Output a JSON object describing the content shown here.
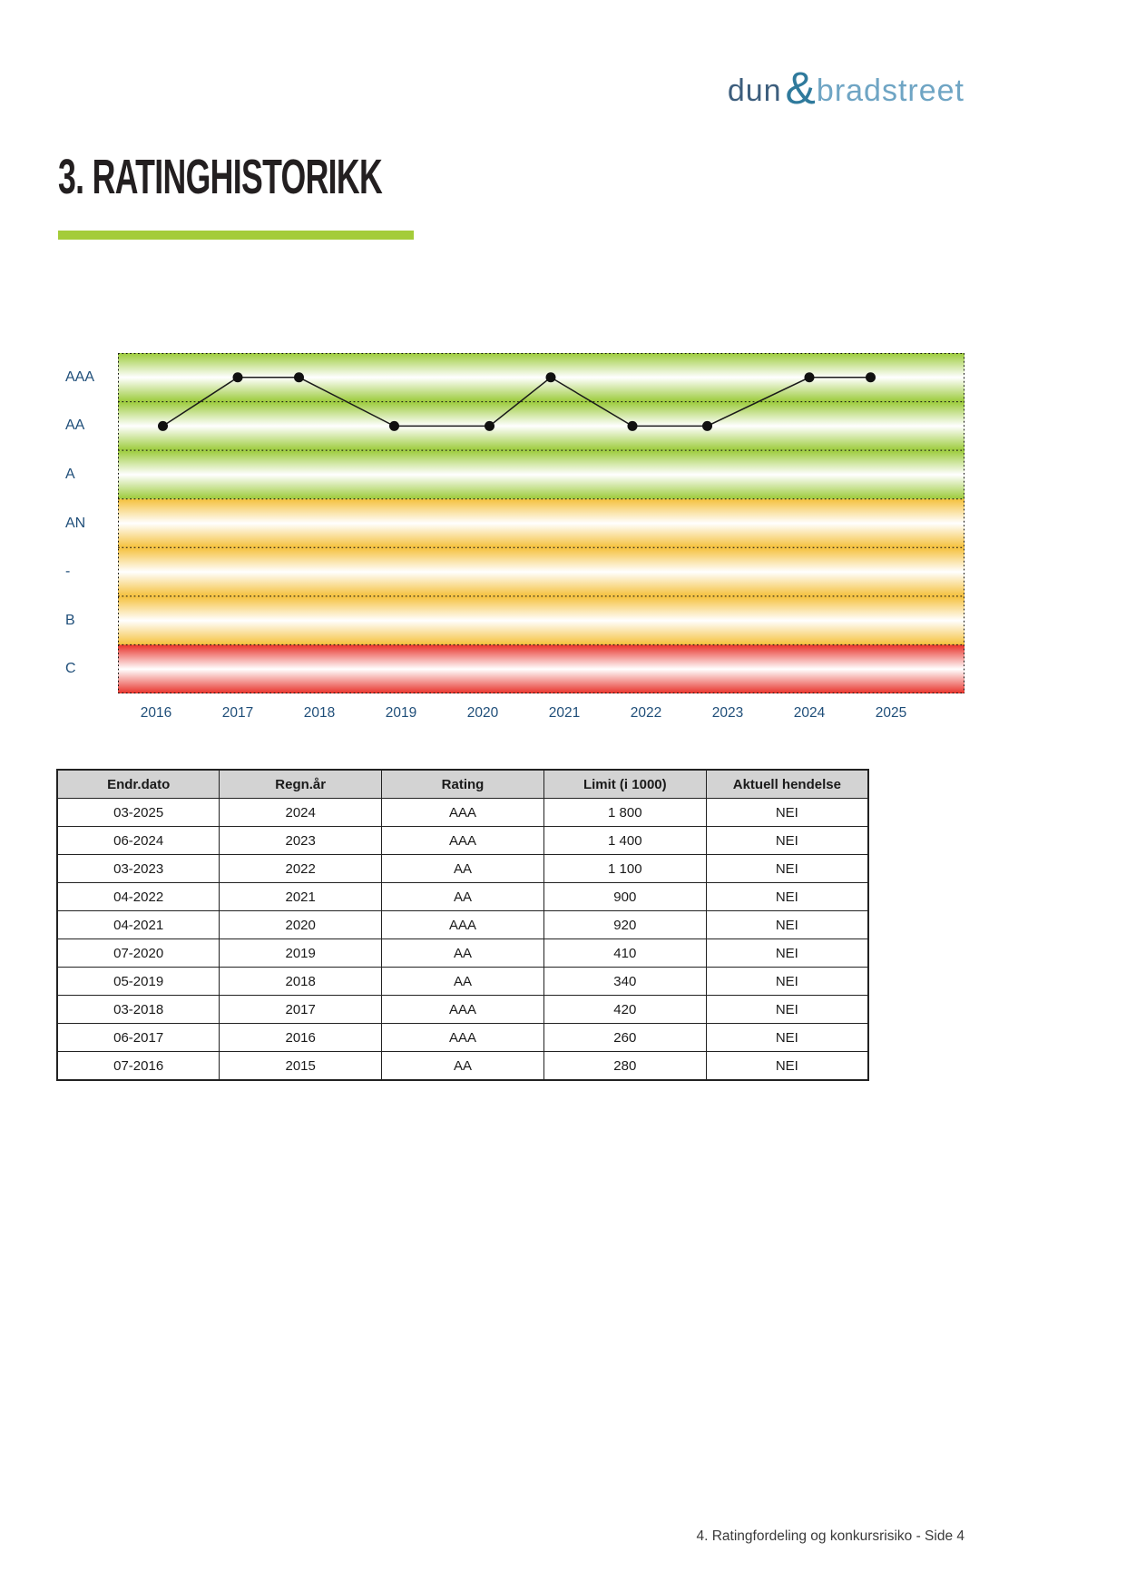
{
  "logo": {
    "dun": "dun",
    "amp": "&",
    "bradstreet": "bradstreet"
  },
  "title": "3. RATINGHISTORIKK",
  "accent_color": "#a4cc39",
  "chart_data": {
    "type": "line",
    "title": "",
    "description": "Rating history chart with colored rating bands",
    "y_bands": [
      {
        "label": "AAA",
        "color": "#9ccb3b"
      },
      {
        "label": "AA",
        "color": "#9ccb3b"
      },
      {
        "label": "A",
        "color": "#9ccb3b"
      },
      {
        "label": "AN",
        "color": "#f5c13c"
      },
      {
        "label": "-",
        "color": "#f5c13c"
      },
      {
        "label": "B",
        "color": "#f5c13c"
      },
      {
        "label": "C",
        "color": "#e8322a"
      }
    ],
    "x_ticks": [
      "2016",
      "2017",
      "2018",
      "2019",
      "2020",
      "2021",
      "2022",
      "2023",
      "2024",
      "2025"
    ],
    "points": [
      {
        "date": "07-2016",
        "rating": "AA"
      },
      {
        "date": "06-2017",
        "rating": "AAA"
      },
      {
        "date": "03-2018",
        "rating": "AAA"
      },
      {
        "date": "05-2019",
        "rating": "AA"
      },
      {
        "date": "07-2020",
        "rating": "AA"
      },
      {
        "date": "04-2021",
        "rating": "AAA"
      },
      {
        "date": "04-2022",
        "rating": "AA"
      },
      {
        "date": "03-2023",
        "rating": "AA"
      },
      {
        "date": "06-2024",
        "rating": "AAA"
      },
      {
        "date": "03-2025",
        "rating": "AAA"
      }
    ],
    "line_color": "#1a1a1a",
    "point_color": "#111111",
    "axis_label_color": "#1f4e79",
    "grid": "dotted-band-separators",
    "legend": "none"
  },
  "table": {
    "headers": [
      "Endr.dato",
      "Regn.år",
      "Rating",
      "Limit (i 1000)",
      "Aktuell hendelse"
    ],
    "rows": [
      [
        "03-2025",
        "2024",
        "AAA",
        "1 800",
        "NEI"
      ],
      [
        "06-2024",
        "2023",
        "AAA",
        "1 400",
        "NEI"
      ],
      [
        "03-2023",
        "2022",
        "AA",
        "1 100",
        "NEI"
      ],
      [
        "04-2022",
        "2021",
        "AA",
        "900",
        "NEI"
      ],
      [
        "04-2021",
        "2020",
        "AAA",
        "920",
        "NEI"
      ],
      [
        "07-2020",
        "2019",
        "AA",
        "410",
        "NEI"
      ],
      [
        "05-2019",
        "2018",
        "AA",
        "340",
        "NEI"
      ],
      [
        "03-2018",
        "2017",
        "AAA",
        "420",
        "NEI"
      ],
      [
        "06-2017",
        "2016",
        "AAA",
        "260",
        "NEI"
      ],
      [
        "07-2016",
        "2015",
        "AA",
        "280",
        "NEI"
      ]
    ]
  },
  "footer": {
    "text": "4. Ratingfordeling og konkursrisiko - Side 4"
  }
}
